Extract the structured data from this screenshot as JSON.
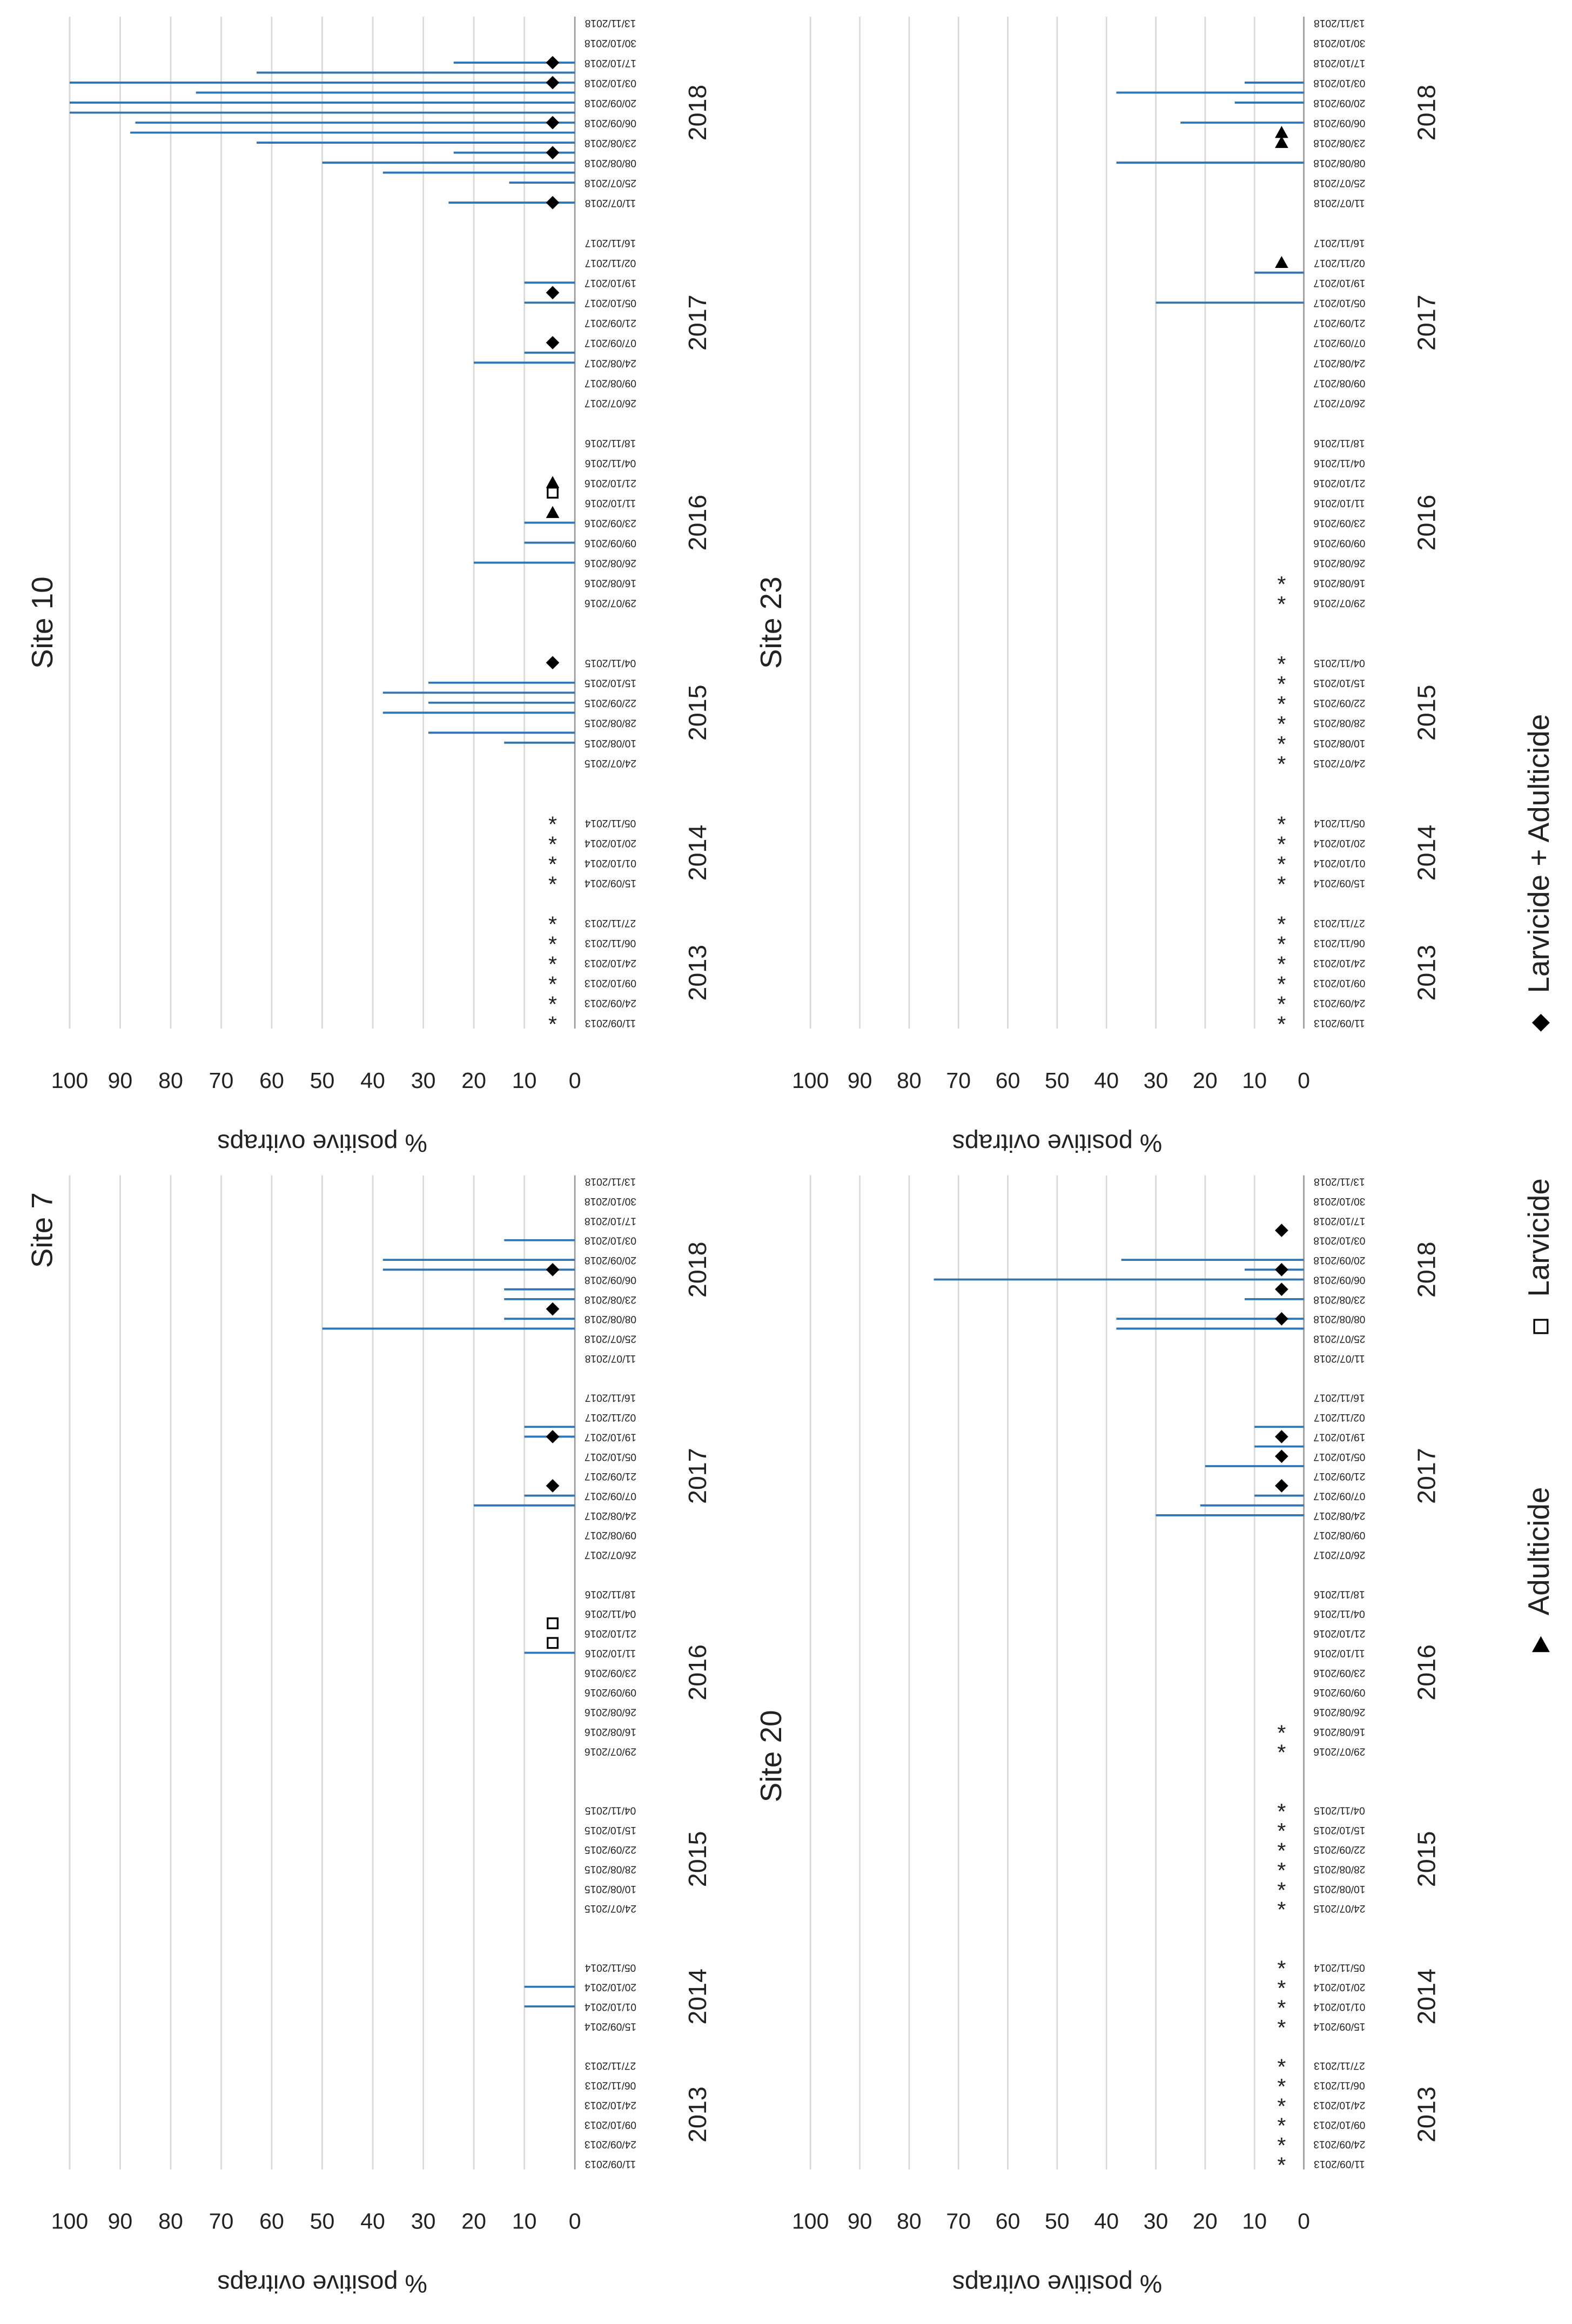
{
  "chart_data": {
    "type": "bar",
    "ylabel": "% positive ovitraps",
    "ylim": [
      0,
      100
    ],
    "yticks": [
      0,
      10,
      20,
      30,
      40,
      50,
      60,
      70,
      80,
      90,
      100
    ],
    "grid": true,
    "color": "#2e75b6",
    "categories": [
      "11/09/2013",
      null,
      "24/09/2013",
      null,
      "09/10/2013",
      null,
      "24/10/2013",
      null,
      "06/11/2013",
      null,
      "27/11/2013",
      null,
      null,
      null,
      "15/09/2014",
      null,
      "01/10/2014",
      null,
      "20/10/2014",
      null,
      "05/11/2014",
      null,
      null,
      null,
      null,
      null,
      "24/07/2015",
      null,
      "10/08/2015",
      null,
      "28/08/2015",
      null,
      "22/09/2015",
      null,
      "15/10/2015",
      null,
      "04/11/2015",
      null,
      null,
      null,
      null,
      null,
      "29/07/2016",
      null,
      "16/08/2016",
      null,
      "26/08/2016",
      null,
      "09/09/2016",
      null,
      "23/09/2016",
      null,
      "11/10/2016",
      null,
      "21/10/2016",
      null,
      "04/11/2016",
      null,
      "18/11/2016",
      null,
      null,
      null,
      "26/07/2017",
      null,
      "09/08/2017",
      null,
      "24/08/2017",
      null,
      "07/09/2017",
      null,
      "21/09/2017",
      null,
      "05/10/2017",
      null,
      "19/10/2017",
      null,
      "02/11/2017",
      null,
      "16/11/2017",
      null,
      null,
      null,
      "11/07/2018",
      null,
      "25/07/2018",
      null,
      "08/08/2018",
      null,
      "23/08/2018",
      null,
      "06/09/2018",
      null,
      "20/09/2018",
      null,
      "03/10/2018",
      null,
      "17/10/2018",
      null,
      "30/10/2018",
      null,
      "13/11/2018"
    ],
    "category_groups": [
      null,
      null,
      null,
      null,
      null,
      "2013",
      null,
      null,
      null,
      null,
      null,
      null,
      null,
      null,
      null,
      null,
      null,
      "2014",
      null,
      null,
      null,
      null,
      null,
      null,
      null,
      null,
      null,
      null,
      null,
      null,
      null,
      "2015",
      null,
      null,
      null,
      null,
      null,
      null,
      null,
      null,
      null,
      null,
      null,
      null,
      null,
      null,
      null,
      null,
      null,
      null,
      "2016",
      null,
      null,
      null,
      null,
      null,
      null,
      null,
      null,
      null,
      null,
      null,
      null,
      null,
      null,
      null,
      null,
      null,
      null,
      null,
      "2017",
      null,
      null,
      null,
      null,
      null,
      null,
      null,
      null,
      null,
      null,
      null,
      null,
      null,
      null,
      null,
      null,
      null,
      null,
      null,
      null,
      "2018",
      null,
      null,
      null,
      null,
      null,
      null,
      null,
      null,
      null
    ],
    "legend": [
      {
        "label": "Adulticide",
        "symbol": "triangle"
      },
      {
        "label": "Larvicide",
        "symbol": "square"
      },
      {
        "label": "Larvicide + Adulticide",
        "symbol": "diamond"
      }
    ],
    "panels": [
      {
        "title": "Site 7",
        "values": [
          null,
          null,
          null,
          null,
          null,
          null,
          null,
          null,
          null,
          null,
          null,
          null,
          null,
          null,
          null,
          null,
          10,
          null,
          10,
          null,
          null,
          null,
          null,
          null,
          null,
          null,
          null,
          null,
          null,
          null,
          null,
          null,
          null,
          null,
          null,
          null,
          null,
          null,
          null,
          null,
          null,
          null,
          null,
          null,
          null,
          null,
          null,
          null,
          null,
          null,
          null,
          null,
          10,
          null,
          null,
          null,
          null,
          null,
          null,
          null,
          null,
          null,
          null,
          null,
          null,
          null,
          null,
          20,
          10,
          null,
          null,
          null,
          null,
          null,
          10,
          10,
          null,
          null,
          null,
          null,
          null,
          null,
          null,
          null,
          null,
          50,
          14,
          null,
          14,
          14,
          null,
          38,
          38,
          null,
          14,
          null,
          null,
          null,
          null,
          null,
          null
        ],
        "markers": [
          null,
          null,
          null,
          null,
          null,
          null,
          null,
          null,
          null,
          null,
          null,
          null,
          null,
          null,
          null,
          null,
          null,
          null,
          null,
          null,
          null,
          null,
          null,
          null,
          null,
          null,
          null,
          null,
          null,
          null,
          null,
          null,
          null,
          null,
          null,
          null,
          null,
          null,
          null,
          null,
          null,
          null,
          null,
          null,
          null,
          null,
          null,
          null,
          null,
          null,
          null,
          null,
          null,
          "Larvicide",
          null,
          "Larvicide",
          null,
          null,
          null,
          null,
          null,
          null,
          null,
          null,
          null,
          null,
          null,
          null,
          null,
          "Larvicide + Adulticide",
          null,
          null,
          null,
          null,
          "Larvicide + Adulticide",
          null,
          null,
          null,
          null,
          null,
          null,
          null,
          null,
          null,
          null,
          null,
          null,
          "Larvicide + Adulticide",
          null,
          null,
          null,
          "Larvicide + Adulticide",
          null,
          null,
          null,
          null,
          null,
          null,
          null,
          null,
          null
        ]
      },
      {
        "title": "Site 10",
        "values": [
          null,
          null,
          null,
          null,
          null,
          null,
          null,
          null,
          null,
          null,
          null,
          null,
          null,
          null,
          null,
          null,
          null,
          null,
          null,
          null,
          null,
          null,
          null,
          null,
          null,
          null,
          null,
          null,
          14,
          29,
          null,
          38,
          29,
          38,
          29,
          null,
          null,
          null,
          null,
          null,
          null,
          null,
          null,
          null,
          null,
          null,
          20,
          null,
          10,
          null,
          10,
          null,
          null,
          null,
          null,
          null,
          null,
          null,
          null,
          null,
          null,
          null,
          null,
          null,
          null,
          null,
          20,
          10,
          null,
          null,
          null,
          null,
          10,
          null,
          10,
          null,
          null,
          null,
          null,
          null,
          null,
          null,
          25,
          null,
          13,
          38,
          50,
          24,
          63,
          88,
          87,
          100,
          100,
          75,
          100,
          63,
          24,
          null,
          null,
          null,
          null
        ],
        "markers": [
          "*",
          null,
          "*",
          null,
          "*",
          null,
          "*",
          null,
          "*",
          null,
          "*",
          null,
          null,
          null,
          "*",
          null,
          "*",
          null,
          "*",
          null,
          "*",
          null,
          null,
          null,
          null,
          null,
          null,
          null,
          null,
          null,
          null,
          null,
          null,
          null,
          null,
          null,
          "Larvicide + Adulticide",
          null,
          null,
          null,
          null,
          null,
          null,
          null,
          null,
          null,
          null,
          null,
          null,
          null,
          null,
          "Adulticide",
          null,
          "Larvicide",
          "Adulticide",
          null,
          null,
          null,
          null,
          null,
          null,
          null,
          null,
          null,
          null,
          null,
          null,
          null,
          "Larvicide + Adulticide",
          null,
          null,
          null,
          null,
          "Larvicide + Adulticide",
          null,
          null,
          null,
          null,
          null,
          null,
          null,
          null,
          "Larvicide + Adulticide",
          null,
          null,
          null,
          null,
          "Larvicide + Adulticide",
          null,
          null,
          "Larvicide + Adulticide",
          null,
          null,
          null,
          "Larvicide + Adulticide",
          null,
          "Larvicide + Adulticide",
          null,
          null,
          null,
          null
        ]
      },
      {
        "title": "Site 20",
        "values": [
          null,
          null,
          null,
          null,
          null,
          null,
          null,
          null,
          null,
          null,
          null,
          null,
          null,
          null,
          null,
          null,
          null,
          null,
          null,
          null,
          null,
          null,
          null,
          null,
          null,
          null,
          null,
          null,
          null,
          null,
          null,
          null,
          null,
          null,
          null,
          null,
          null,
          null,
          null,
          null,
          null,
          null,
          null,
          null,
          null,
          null,
          null,
          null,
          null,
          null,
          null,
          null,
          null,
          null,
          null,
          null,
          null,
          null,
          null,
          null,
          null,
          null,
          null,
          null,
          null,
          null,
          30,
          21,
          10,
          null,
          null,
          20,
          null,
          10,
          null,
          10,
          null,
          null,
          null,
          null,
          null,
          null,
          null,
          null,
          null,
          38,
          38,
          null,
          12,
          null,
          75,
          12,
          37,
          null,
          null,
          null,
          null,
          null,
          null,
          null,
          null
        ],
        "markers": [
          "*",
          null,
          "*",
          null,
          "*",
          null,
          "*",
          null,
          "*",
          null,
          "*",
          null,
          null,
          null,
          "*",
          null,
          "*",
          null,
          "*",
          null,
          "*",
          null,
          null,
          null,
          null,
          null,
          "*",
          null,
          "*",
          null,
          "*",
          null,
          "*",
          null,
          "*",
          null,
          "*",
          null,
          null,
          null,
          null,
          null,
          "*",
          null,
          "*",
          null,
          null,
          null,
          null,
          null,
          null,
          null,
          null,
          null,
          null,
          null,
          null,
          null,
          null,
          null,
          null,
          null,
          null,
          null,
          null,
          null,
          null,
          null,
          null,
          "Larvicide + Adulticide",
          null,
          null,
          "Larvicide + Adulticide",
          null,
          "Larvicide + Adulticide",
          null,
          null,
          null,
          null,
          null,
          null,
          null,
          null,
          null,
          null,
          null,
          "Larvicide + Adulticide",
          null,
          null,
          "Larvicide + Adulticide",
          null,
          "Larvicide + Adulticide",
          null,
          null,
          null,
          "Larvicide + Adulticide",
          null,
          null,
          null,
          null,
          null
        ]
      },
      {
        "title": "Site 23",
        "values": [
          null,
          null,
          null,
          null,
          null,
          null,
          null,
          null,
          null,
          null,
          null,
          null,
          null,
          null,
          null,
          null,
          null,
          null,
          null,
          null,
          null,
          null,
          null,
          null,
          null,
          null,
          null,
          null,
          null,
          null,
          null,
          null,
          null,
          null,
          null,
          null,
          null,
          null,
          null,
          null,
          null,
          null,
          null,
          null,
          null,
          null,
          null,
          null,
          null,
          null,
          null,
          null,
          null,
          null,
          null,
          null,
          null,
          null,
          null,
          null,
          null,
          null,
          null,
          null,
          null,
          null,
          null,
          null,
          null,
          null,
          null,
          null,
          30,
          null,
          null,
          10,
          null,
          null,
          null,
          null,
          null,
          null,
          null,
          null,
          null,
          null,
          38,
          null,
          null,
          null,
          25,
          null,
          14,
          38,
          12,
          null,
          null,
          null,
          null,
          null,
          null
        ],
        "markers": [
          "*",
          null,
          "*",
          null,
          "*",
          null,
          "*",
          null,
          "*",
          null,
          "*",
          null,
          null,
          null,
          "*",
          null,
          "*",
          null,
          "*",
          null,
          "*",
          null,
          null,
          null,
          null,
          null,
          "*",
          null,
          "*",
          null,
          "*",
          null,
          "*",
          null,
          "*",
          null,
          "*",
          null,
          null,
          null,
          null,
          null,
          "*",
          null,
          "*",
          null,
          null,
          null,
          null,
          null,
          null,
          null,
          null,
          null,
          null,
          null,
          null,
          null,
          null,
          null,
          null,
          null,
          null,
          null,
          null,
          null,
          null,
          null,
          null,
          null,
          null,
          null,
          null,
          null,
          null,
          null,
          "Adulticide",
          null,
          null,
          null,
          null,
          null,
          null,
          null,
          null,
          null,
          null,
          null,
          "Adulticide",
          "Adulticide",
          null,
          null,
          null,
          null,
          null,
          null,
          null,
          null,
          null,
          null,
          null
        ]
      }
    ]
  }
}
